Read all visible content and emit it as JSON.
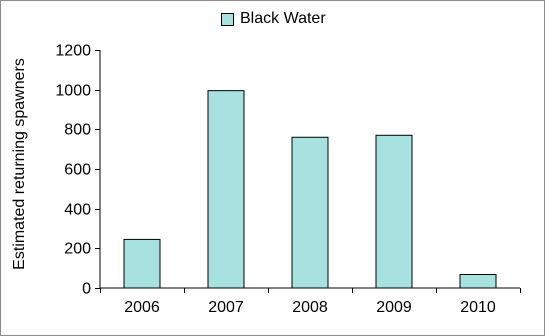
{
  "chart_data": {
    "type": "bar",
    "categories": [
      "2006",
      "2007",
      "2008",
      "2009",
      "2010"
    ],
    "series": [
      {
        "name": "Black Water",
        "values": [
          245,
          995,
          760,
          770,
          68
        ]
      }
    ],
    "title": "",
    "xlabel": "",
    "ylabel": "Estimated returning spawners",
    "ylim": [
      0,
      1200
    ],
    "yticks": [
      "0",
      "200",
      "400",
      "600",
      "800",
      "1000",
      "1200"
    ],
    "grid": false,
    "legend_position": "top-center",
    "colors": {
      "bar_fill": "#a8e2e0",
      "bar_stroke": "#000000"
    }
  }
}
